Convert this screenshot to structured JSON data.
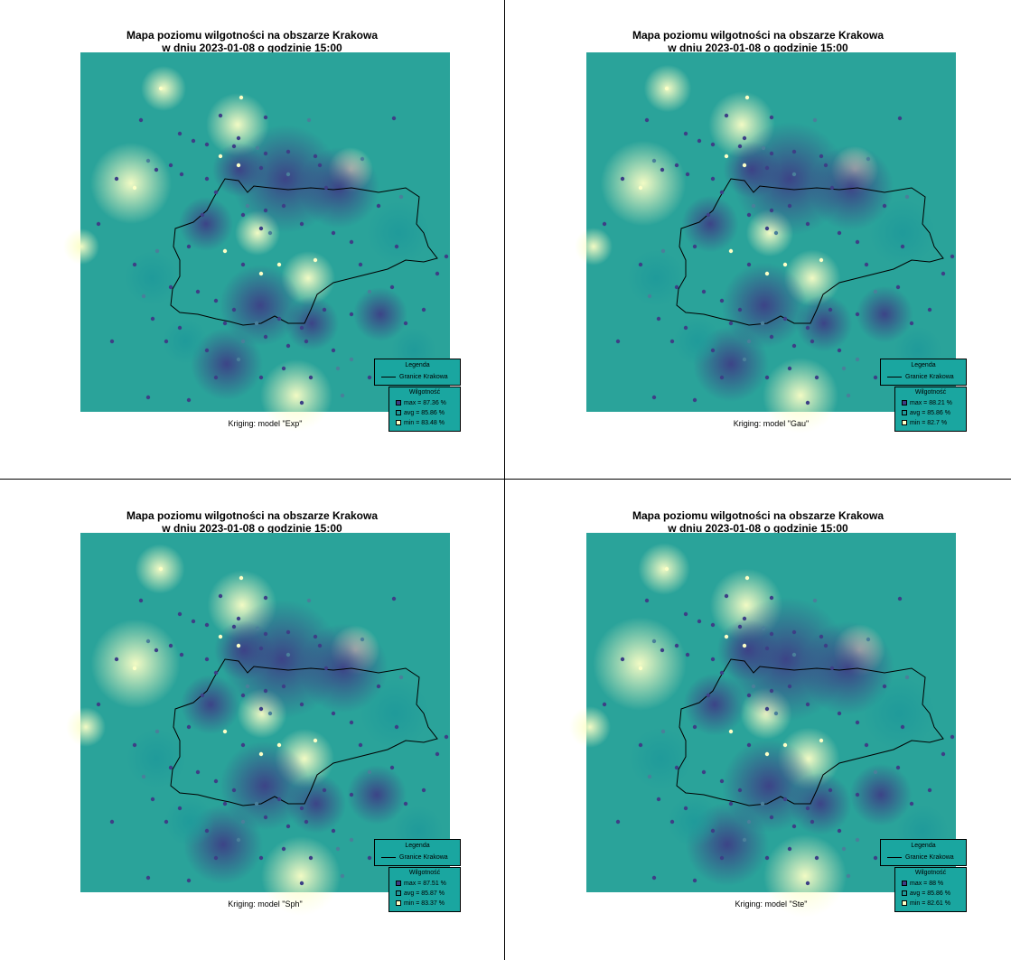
{
  "panels": [
    {
      "title_line1": "Mapa poziomu wilgotności na obszarze Krakowa",
      "title_line2": "w dniu 2023-01-08 o godzinie 15:00",
      "caption": "Kriging: model \"Exp\"",
      "legend_title": "Legenda",
      "legend_boundary": "Granice Krakowa",
      "legend_values_title": "Wilgotność",
      "legend_max": "max =  87.36 %",
      "legend_avg": "avg =  85.86 %",
      "legend_min": "min =  83.48 %"
    },
    {
      "title_line1": "Mapa poziomu wilgotności na obszarze Krakowa",
      "title_line2": "w dniu 2023-01-08 o godzinie 15:00",
      "caption": "Kriging: model \"Gau\"",
      "legend_title": "Legenda",
      "legend_boundary": "Granice Krakowa",
      "legend_values_title": "Wilgotność",
      "legend_max": "max =  88.21 %",
      "legend_avg": "avg =  85.86 %",
      "legend_min": "min =  82.7 %"
    },
    {
      "title_line1": "Mapa poziomu wilgotności na obszarze Krakowa",
      "title_line2": "w dniu 2023-01-08 o godzinie 15:00",
      "caption": "Kriging: model \"Sph\"",
      "legend_title": "Legenda",
      "legend_boundary": "Granice Krakowa",
      "legend_values_title": "Wilgotność",
      "legend_max": "max =  87.51 %",
      "legend_avg": "avg =  85.87 %",
      "legend_min": "min =  83.37 %"
    },
    {
      "title_line1": "Mapa poziomu wilgotności na obszarze Krakowa",
      "title_line2": "w dniu 2023-01-08 o godzinie 15:00",
      "caption": "Kriging: model \"Ste\"",
      "legend_title": "Legenda",
      "legend_boundary": "Granice Krakowa",
      "legend_values_title": "Wilgotność",
      "legend_max": "max =  88 %",
      "legend_avg": "avg =  85.86 %",
      "legend_min": "min =  82.61 %"
    }
  ],
  "colors": {
    "map_base": "#2aa39a",
    "high_humidity": "#3d3f86",
    "mid_humidity": "#1f9a9a",
    "low_humidity": "#fcffc6",
    "legend_bg": "#1aa6a0",
    "boundary": "#000000"
  }
}
